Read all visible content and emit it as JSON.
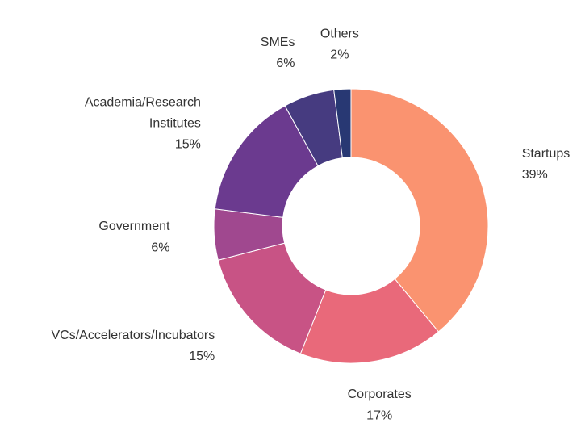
{
  "chart_data": {
    "type": "donut",
    "categories": [
      "Startups",
      "Corporates",
      "VCs/Accelerators/Incubators",
      "Government",
      "Academia/Research Institutes",
      "SMEs",
      "Others"
    ],
    "values": [
      39,
      17,
      15,
      6,
      15,
      6,
      2
    ],
    "value_labels": [
      "39%",
      "17%",
      "15%",
      "6%",
      "15%",
      "6%",
      "2%"
    ],
    "colors": [
      "#fa9370",
      "#e9697a",
      "#c85385",
      "#a0488f",
      "#6b3a8f",
      "#463b80",
      "#283873"
    ]
  }
}
